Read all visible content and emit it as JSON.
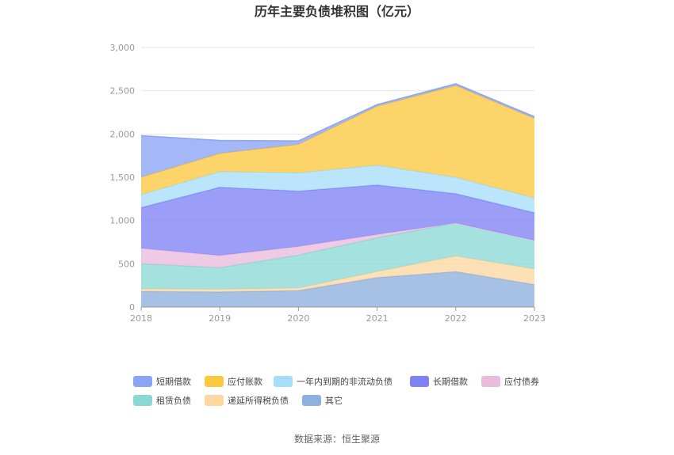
{
  "chart_data": {
    "type": "area",
    "stacked": true,
    "title": "历年主要负债堆积图（亿元）",
    "x": [
      "2018",
      "2019",
      "2020",
      "2021",
      "2022",
      "2023"
    ],
    "ylim": [
      0,
      3000
    ],
    "yticks": [
      0,
      500,
      1000,
      1500,
      2000,
      2500,
      3000
    ],
    "ytick_labels": [
      "0",
      "500",
      "1,000",
      "1,500",
      "2,000",
      "2,500",
      "3,000"
    ],
    "grid": true,
    "legend_position": "bottom",
    "series": [
      {
        "name": "其它",
        "color": "#8eb0de",
        "values": [
          180,
          175,
          190,
          340,
          410,
          260
        ]
      },
      {
        "name": "递延所得税负债",
        "color": "#fdd7a0",
        "values": [
          30,
          30,
          30,
          70,
          180,
          180
        ]
      },
      {
        "name": "租赁负债",
        "color": "#8ad8d6",
        "values": [
          290,
          250,
          380,
          390,
          380,
          330
        ]
      },
      {
        "name": "应付债券",
        "color": "#ebbbdc",
        "values": [
          180,
          140,
          100,
          40,
          0,
          0
        ]
      },
      {
        "name": "长期借款",
        "color": "#7f82f5",
        "values": [
          470,
          790,
          640,
          570,
          340,
          320
        ]
      },
      {
        "name": "一年内到期的非流动负债",
        "color": "#a6def9",
        "values": [
          150,
          180,
          210,
          230,
          190,
          170
        ]
      },
      {
        "name": "应付账款",
        "color": "#fcc840",
        "values": [
          200,
          210,
          330,
          680,
          1060,
          920
        ]
      },
      {
        "name": "短期借款",
        "color": "#8aa4f6",
        "values": [
          480,
          150,
          40,
          20,
          20,
          20
        ]
      }
    ],
    "legend_order": [
      "短期借款",
      "应付账款",
      "一年内到期的非流动负债",
      "长期借款",
      "应付债券",
      "租赁负债",
      "递延所得税负债",
      "其它"
    ]
  },
  "footer": {
    "source": "数据来源：恒生聚源"
  }
}
